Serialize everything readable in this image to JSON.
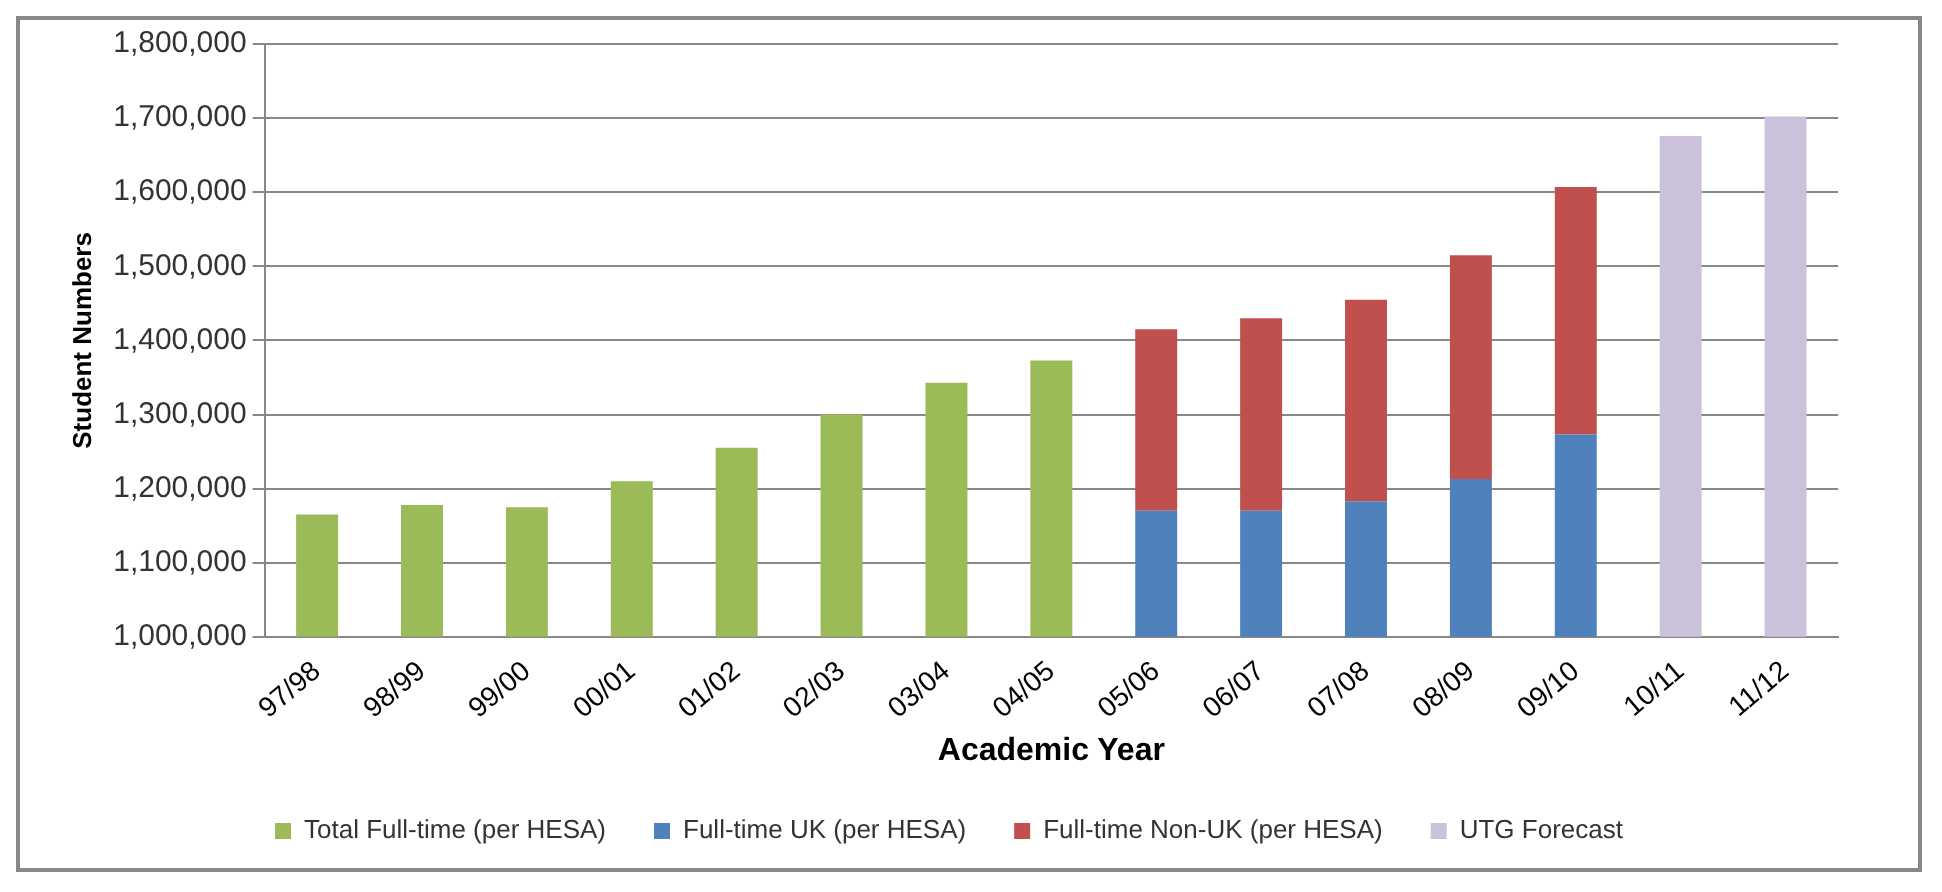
{
  "chart_data": {
    "type": "bar",
    "xlabel": "Academic Year",
    "ylabel": "Student Numbers",
    "categories": [
      "97/98",
      "98/99",
      "99/00",
      "00/01",
      "01/02",
      "02/03",
      "03/04",
      "04/05",
      "05/06",
      "06/07",
      "07/08",
      "08/09",
      "09/10",
      "10/11",
      "11/12"
    ],
    "series": [
      {
        "name": "Total Full-time (per HESA)",
        "color": "#9bbb59",
        "values": [
          1165000,
          1178000,
          1175000,
          1210000,
          1255000,
          1300000,
          1343000,
          1373000,
          null,
          null,
          null,
          null,
          null,
          null,
          null
        ]
      },
      {
        "name": "Full-time UK (per HESA)",
        "color": "#4f81bd",
        "values": [
          null,
          null,
          null,
          null,
          null,
          null,
          null,
          null,
          1170000,
          1170000,
          1183000,
          1213000,
          1273000,
          null,
          null
        ]
      },
      {
        "name": "Full-time Non-UK (per HESA)",
        "color": "#c0504d",
        "base": [
          null,
          null,
          null,
          null,
          null,
          null,
          null,
          null,
          1170000,
          1170000,
          1183000,
          1213000,
          1273000,
          null,
          null
        ],
        "values": [
          null,
          null,
          null,
          null,
          null,
          null,
          null,
          null,
          245000,
          260000,
          272000,
          302000,
          334000,
          null,
          null
        ]
      },
      {
        "name": "UTG Forecast",
        "color": "#ccc1da",
        "values": [
          null,
          null,
          null,
          null,
          null,
          null,
          null,
          null,
          null,
          null,
          null,
          null,
          null,
          1676000,
          1702000
        ]
      }
    ],
    "ylim": [
      1000000,
      1800000
    ],
    "yticks": [
      {
        "value": 1000000,
        "label": "1,000,000"
      },
      {
        "value": 1100000,
        "label": "1,100,000"
      },
      {
        "value": 1200000,
        "label": "1,200,000"
      },
      {
        "value": 1300000,
        "label": "1,300,000"
      },
      {
        "value": 1400000,
        "label": "1,400,000"
      },
      {
        "value": 1500000,
        "label": "1,500,000"
      },
      {
        "value": 1600000,
        "label": "1,600,000"
      },
      {
        "value": 1700000,
        "label": "1,700,000"
      },
      {
        "value": 1800000,
        "label": "1,800,000"
      }
    ],
    "grid": "y",
    "legend": "bottom"
  }
}
